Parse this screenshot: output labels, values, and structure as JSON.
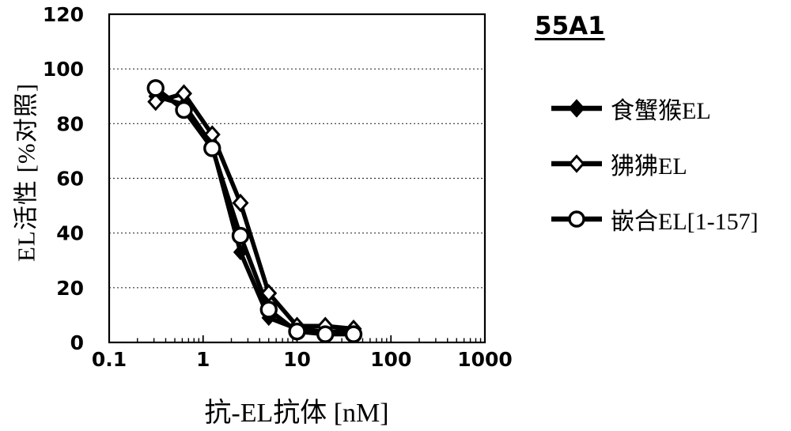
{
  "chart_data": {
    "type": "line",
    "title": "55A1",
    "xlabel": "抗-EL抗体 [nM]",
    "ylabel": "EL活性 [%对照]",
    "x_scale": "log",
    "xlim": [
      0.1,
      1000
    ],
    "ylim": [
      0,
      120
    ],
    "x_ticks": [
      0.1,
      1,
      10,
      100,
      1000
    ],
    "y_ticks": [
      0,
      20,
      40,
      60,
      80,
      100,
      120
    ],
    "grid": "horizontal-dashed",
    "legend_position": "right",
    "x": [
      0.3125,
      0.625,
      1.25,
      2.5,
      5,
      10,
      20,
      40
    ],
    "series": [
      {
        "name": "食蟹猴EL",
        "marker": "filled-diamond",
        "values": [
          90,
          87,
          72,
          33,
          9,
          5,
          4,
          4
        ]
      },
      {
        "name": "狒狒EL",
        "marker": "open-diamond",
        "values": [
          88,
          91,
          76,
          51,
          18,
          6,
          6,
          5
        ]
      },
      {
        "name": "嵌合EL[1-157]",
        "marker": "open-circle",
        "values": [
          93,
          85,
          71,
          39,
          12,
          4,
          3,
          3
        ]
      }
    ],
    "colors": {
      "line": "#000000",
      "background": "#ffffff",
      "grid": "#333333"
    }
  }
}
